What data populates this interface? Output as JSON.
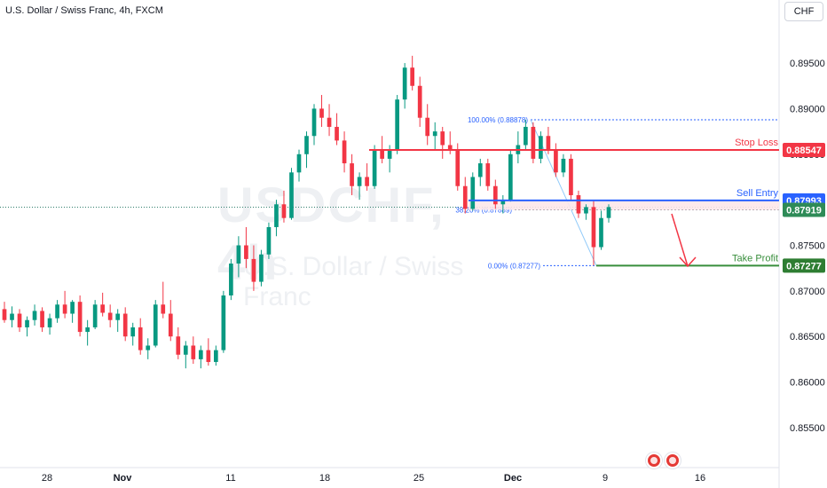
{
  "header": {
    "symbol": "U.S. Dollar / Swiss Franc, 4h, FXCM",
    "currency": "CHF"
  },
  "watermark": {
    "ticker": "USDCHF, 4h",
    "name": "U.S. Dollar / Swiss Franc"
  },
  "icons": [
    "us-flag-event-icon",
    "us-flag-event-icon"
  ],
  "chart_data": {
    "type": "candlestick",
    "title": "U.S. Dollar / Swiss Franc, 4h, FXCM",
    "ylim": [
      0.851,
      0.899
    ],
    "y_ticks": [
      "0.89500",
      "0.89000",
      "0.88500",
      "0.88000",
      "0.87500",
      "0.87000",
      "0.86500",
      "0.86000",
      "0.85500"
    ],
    "x_ticks": [
      "28",
      "Nov",
      "11",
      "18",
      "25",
      "Dec",
      "9",
      "16"
    ],
    "colors": {
      "up": "#089981",
      "down": "#f23645"
    },
    "candles": [
      [
        0.868,
        0.8688,
        0.8665,
        0.8668
      ],
      [
        0.8668,
        0.8683,
        0.866,
        0.8675
      ],
      [
        0.8675,
        0.868,
        0.8655,
        0.866
      ],
      [
        0.866,
        0.8672,
        0.865,
        0.8668
      ],
      [
        0.8668,
        0.8685,
        0.8662,
        0.8678
      ],
      [
        0.8678,
        0.8682,
        0.8655,
        0.866
      ],
      [
        0.866,
        0.8675,
        0.8652,
        0.867
      ],
      [
        0.867,
        0.869,
        0.8665,
        0.8685
      ],
      [
        0.8685,
        0.87,
        0.867,
        0.8675
      ],
      [
        0.8675,
        0.869,
        0.8665,
        0.8688
      ],
      [
        0.8688,
        0.8695,
        0.865,
        0.8655
      ],
      [
        0.8655,
        0.8668,
        0.864,
        0.866
      ],
      [
        0.866,
        0.869,
        0.8658,
        0.8685
      ],
      [
        0.8685,
        0.8698,
        0.8672,
        0.8676
      ],
      [
        0.8676,
        0.8685,
        0.866,
        0.8668
      ],
      [
        0.8668,
        0.868,
        0.8655,
        0.8675
      ],
      [
        0.8675,
        0.8682,
        0.8645,
        0.865
      ],
      [
        0.865,
        0.8665,
        0.864,
        0.866
      ],
      [
        0.866,
        0.867,
        0.863,
        0.8635
      ],
      [
        0.8635,
        0.8648,
        0.8625,
        0.864
      ],
      [
        0.864,
        0.869,
        0.8638,
        0.8685
      ],
      [
        0.8685,
        0.871,
        0.867,
        0.8675
      ],
      [
        0.8675,
        0.869,
        0.8645,
        0.865
      ],
      [
        0.865,
        0.866,
        0.8625,
        0.863
      ],
      [
        0.863,
        0.8645,
        0.8615,
        0.864
      ],
      [
        0.864,
        0.865,
        0.862,
        0.8625
      ],
      [
        0.8625,
        0.864,
        0.8615,
        0.8635
      ],
      [
        0.8635,
        0.8648,
        0.8618,
        0.8622
      ],
      [
        0.8622,
        0.864,
        0.8618,
        0.8635
      ],
      [
        0.8635,
        0.87,
        0.8632,
        0.8695
      ],
      [
        0.8695,
        0.8735,
        0.869,
        0.873
      ],
      [
        0.873,
        0.876,
        0.8715,
        0.875
      ],
      [
        0.875,
        0.877,
        0.8725,
        0.8735
      ],
      [
        0.8735,
        0.875,
        0.87,
        0.871
      ],
      [
        0.871,
        0.8745,
        0.8705,
        0.874
      ],
      [
        0.874,
        0.8775,
        0.8735,
        0.877
      ],
      [
        0.877,
        0.88,
        0.876,
        0.8795
      ],
      [
        0.8795,
        0.881,
        0.8775,
        0.878
      ],
      [
        0.878,
        0.8835,
        0.8778,
        0.883
      ],
      [
        0.883,
        0.8855,
        0.882,
        0.885
      ],
      [
        0.885,
        0.8875,
        0.8835,
        0.887
      ],
      [
        0.887,
        0.8905,
        0.886,
        0.89
      ],
      [
        0.89,
        0.8915,
        0.888,
        0.889
      ],
      [
        0.889,
        0.8905,
        0.887,
        0.888
      ],
      [
        0.888,
        0.8895,
        0.886,
        0.8865
      ],
      [
        0.8865,
        0.8875,
        0.883,
        0.884
      ],
      [
        0.884,
        0.885,
        0.8805,
        0.8815
      ],
      [
        0.8815,
        0.883,
        0.88,
        0.8825
      ],
      [
        0.8825,
        0.884,
        0.881,
        0.8815
      ],
      [
        0.8815,
        0.886,
        0.8812,
        0.8855
      ],
      [
        0.8855,
        0.887,
        0.884,
        0.8845
      ],
      [
        0.8845,
        0.886,
        0.883,
        0.8855
      ],
      [
        0.8855,
        0.8915,
        0.885,
        0.891
      ],
      [
        0.891,
        0.895,
        0.89,
        0.8945
      ],
      [
        0.8945,
        0.8958,
        0.892,
        0.8925
      ],
      [
        0.8925,
        0.8935,
        0.888,
        0.889
      ],
      [
        0.889,
        0.8905,
        0.886,
        0.887
      ],
      [
        0.887,
        0.8885,
        0.8855,
        0.8875
      ],
      [
        0.8875,
        0.888,
        0.8845,
        0.886
      ],
      [
        0.886,
        0.8875,
        0.885,
        0.8855
      ],
      [
        0.8855,
        0.8862,
        0.881,
        0.8815
      ],
      [
        0.8815,
        0.8825,
        0.8785,
        0.879
      ],
      [
        0.879,
        0.883,
        0.8788,
        0.8825
      ],
      [
        0.8825,
        0.8845,
        0.8815,
        0.884
      ],
      [
        0.884,
        0.8845,
        0.881,
        0.8815
      ],
      [
        0.8815,
        0.8822,
        0.879,
        0.8795
      ],
      [
        0.8795,
        0.8805,
        0.8785,
        0.88
      ],
      [
        0.88,
        0.8855,
        0.8798,
        0.885
      ],
      [
        0.885,
        0.8875,
        0.884,
        0.886
      ],
      [
        0.886,
        0.8888,
        0.8855,
        0.888
      ],
      [
        0.888,
        0.8885,
        0.884,
        0.8845
      ],
      [
        0.8845,
        0.8875,
        0.884,
        0.887
      ],
      [
        0.887,
        0.888,
        0.885,
        0.8855
      ],
      [
        0.8855,
        0.8862,
        0.8825,
        0.883
      ],
      [
        0.883,
        0.885,
        0.8825,
        0.8845
      ],
      [
        0.8845,
        0.885,
        0.88,
        0.8805
      ],
      [
        0.8805,
        0.881,
        0.878,
        0.8785
      ],
      [
        0.8785,
        0.8795,
        0.8778,
        0.8792
      ],
      [
        0.8792,
        0.88,
        0.8728,
        0.8748
      ],
      [
        0.8748,
        0.8788,
        0.8745,
        0.878
      ],
      [
        0.878,
        0.8795,
        0.8775,
        0.8792
      ]
    ],
    "levels": [
      {
        "name": "Stop Loss",
        "value": 0.88547,
        "color": "#f23645"
      },
      {
        "name": "Sell Entry",
        "value": 0.87993,
        "color": "#2962ff"
      },
      {
        "name": "Take Profit",
        "value": 0.87277,
        "color": "#388e3c"
      }
    ],
    "current_price": 0.87919,
    "fibonacci": [
      {
        "label": "100.00% (0.88878)",
        "value": 0.88878
      },
      {
        "label": "38.20% (0.87889)",
        "value": 0.87889
      },
      {
        "label": "0.00% (0.87277)",
        "value": 0.87277
      }
    ],
    "price_labels": {
      "stop_loss": "0.88547",
      "sell_entry": "0.87993",
      "current": "0.87919",
      "take_profit": "0.87277"
    }
  }
}
